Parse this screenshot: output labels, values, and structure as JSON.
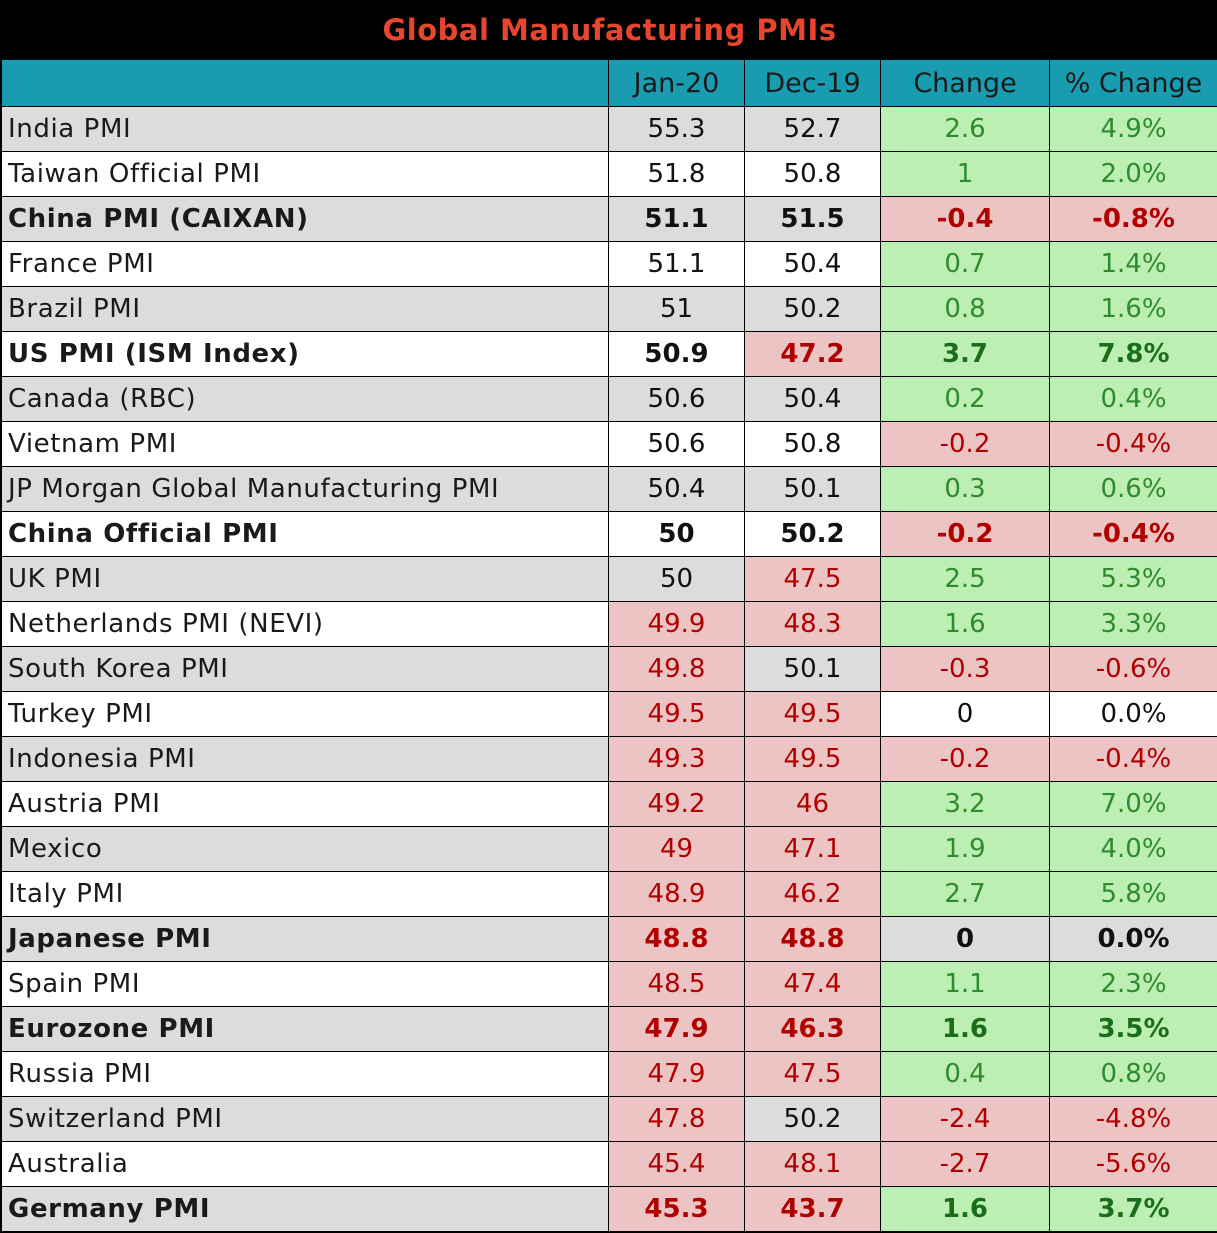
{
  "chart_data": {
    "type": "table",
    "title": "Global Manufacturing PMIs",
    "columns": [
      "",
      "Jan-20",
      "Dec-19",
      "Change",
      "% Change"
    ],
    "rows": [
      {
        "name": "India PMI",
        "jan": "55.3",
        "dec": "52.7",
        "change": "2.6",
        "pct": "4.9%",
        "bold": false
      },
      {
        "name": "Taiwan Official PMI",
        "jan": "51.8",
        "dec": "50.8",
        "change": "1",
        "pct": "2.0%",
        "bold": false
      },
      {
        "name": "China PMI (CAIXAN)",
        "jan": "51.1",
        "dec": "51.5",
        "change": "-0.4",
        "pct": "-0.8%",
        "bold": true
      },
      {
        "name": "France PMI",
        "jan": "51.1",
        "dec": "50.4",
        "change": "0.7",
        "pct": "1.4%",
        "bold": false
      },
      {
        "name": "Brazil PMI",
        "jan": "51",
        "dec": "50.2",
        "change": "0.8",
        "pct": "1.6%",
        "bold": false
      },
      {
        "name": "US PMI (ISM Index)",
        "jan": "50.9",
        "dec": "47.2",
        "change": "3.7",
        "pct": "7.8%",
        "bold": true
      },
      {
        "name": "Canada (RBC)",
        "jan": "50.6",
        "dec": "50.4",
        "change": "0.2",
        "pct": "0.4%",
        "bold": false
      },
      {
        "name": "Vietnam PMI",
        "jan": "50.6",
        "dec": "50.8",
        "change": "-0.2",
        "pct": "-0.4%",
        "bold": false
      },
      {
        "name": "JP Morgan Global Manufacturing PMI",
        "jan": "50.4",
        "dec": "50.1",
        "change": "0.3",
        "pct": "0.6%",
        "bold": false
      },
      {
        "name": "China Official PMI",
        "jan": "50",
        "dec": "50.2",
        "change": "-0.2",
        "pct": "-0.4%",
        "bold": true
      },
      {
        "name": "UK PMI",
        "jan": "50",
        "dec": "47.5",
        "change": "2.5",
        "pct": "5.3%",
        "bold": false
      },
      {
        "name": "Netherlands PMI (NEVI)",
        "jan": "49.9",
        "dec": "48.3",
        "change": "1.6",
        "pct": "3.3%",
        "bold": false
      },
      {
        "name": "South Korea PMI",
        "jan": "49.8",
        "dec": "50.1",
        "change": "-0.3",
        "pct": "-0.6%",
        "bold": false
      },
      {
        "name": "Turkey PMI",
        "jan": "49.5",
        "dec": "49.5",
        "change": "0",
        "pct": "0.0%",
        "bold": false
      },
      {
        "name": "Indonesia PMI",
        "jan": "49.3",
        "dec": "49.5",
        "change": "-0.2",
        "pct": "-0.4%",
        "bold": false
      },
      {
        "name": "Austria PMI",
        "jan": "49.2",
        "dec": "46",
        "change": "3.2",
        "pct": "7.0%",
        "bold": false
      },
      {
        "name": "Mexico",
        "jan": "49",
        "dec": "47.1",
        "change": "1.9",
        "pct": "4.0%",
        "bold": false
      },
      {
        "name": "Italy PMI",
        "jan": "48.9",
        "dec": "46.2",
        "change": "2.7",
        "pct": "5.8%",
        "bold": false
      },
      {
        "name": "Japanese PMI",
        "jan": "48.8",
        "dec": "48.8",
        "change": "0",
        "pct": "0.0%",
        "bold": true
      },
      {
        "name": "Spain PMI",
        "jan": "48.5",
        "dec": "47.4",
        "change": "1.1",
        "pct": "2.3%",
        "bold": false
      },
      {
        "name": "Eurozone PMI",
        "jan": "47.9",
        "dec": "46.3",
        "change": "1.6",
        "pct": "3.5%",
        "bold": true
      },
      {
        "name": "Russia PMI",
        "jan": "47.9",
        "dec": "47.5",
        "change": "0.4",
        "pct": "0.8%",
        "bold": false
      },
      {
        "name": "Switzerland PMI",
        "jan": "47.8",
        "dec": "50.2",
        "change": "-2.4",
        "pct": "-4.8%",
        "bold": false
      },
      {
        "name": "Australia",
        "jan": "45.4",
        "dec": "48.1",
        "change": "-2.7",
        "pct": "-5.6%",
        "bold": false
      },
      {
        "name": "Germany PMI",
        "jan": "45.3",
        "dec": "43.7",
        "change": "1.6",
        "pct": "3.7%",
        "bold": true
      }
    ]
  },
  "colors": {
    "title_bg": "#000000",
    "title_text": "#e8452c",
    "header_bg": "#1a9cb0",
    "row_gray": "#dcdcdc",
    "below_50_bg": "#ecc4c4",
    "negative_text": "#b00000",
    "positive_bg": "#bdefb5",
    "positive_text": "#2e8b2e"
  }
}
